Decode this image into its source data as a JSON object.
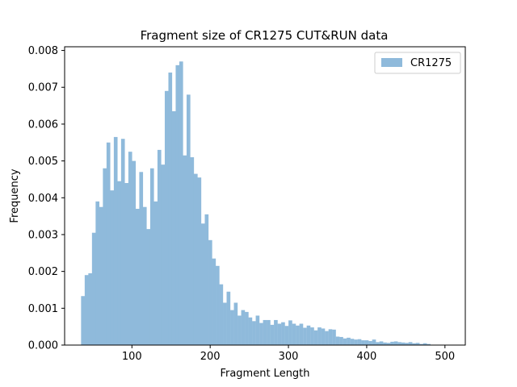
{
  "chart_data": {
    "type": "bar",
    "title": "Fragment size of CR1275 CUT&RUN data",
    "xlabel": "Fragment Length",
    "ylabel": "Frequency",
    "xlim": [
      14,
      526
    ],
    "ylim": [
      0,
      0.0081
    ],
    "xticks": [
      100,
      200,
      300,
      400,
      500
    ],
    "xtick_labels": [
      "100",
      "200",
      "300",
      "400",
      "500"
    ],
    "yticks": [
      0,
      0.001,
      0.002,
      0.003,
      0.004,
      0.005,
      0.006,
      0.007,
      0.008
    ],
    "ytick_labels": [
      "0.000",
      "0.001",
      "0.002",
      "0.003",
      "0.004",
      "0.005",
      "0.006",
      "0.007",
      "0.008"
    ],
    "bin_start": 35,
    "bin_width": 4.65,
    "series": [
      {
        "name": "CR1275",
        "color": "#8fbadb",
        "values": [
          0.00133,
          0.0019,
          0.00195,
          0.00305,
          0.0039,
          0.00375,
          0.0048,
          0.0055,
          0.0042,
          0.00565,
          0.00445,
          0.0056,
          0.0044,
          0.00525,
          0.005,
          0.0037,
          0.0047,
          0.00375,
          0.00315,
          0.0048,
          0.0039,
          0.0053,
          0.0049,
          0.0069,
          0.0074,
          0.00635,
          0.0076,
          0.0077,
          0.00515,
          0.0068,
          0.0051,
          0.00465,
          0.00455,
          0.0033,
          0.00355,
          0.00285,
          0.00235,
          0.00215,
          0.00165,
          0.00115,
          0.00145,
          0.00095,
          0.00115,
          0.0008,
          0.00095,
          0.0009,
          0.00075,
          0.00065,
          0.0008,
          0.0006,
          0.00068,
          0.00068,
          0.00055,
          0.00068,
          0.00058,
          0.00062,
          0.00052,
          0.00067,
          0.00058,
          0.00053,
          0.00058,
          0.00047,
          0.00053,
          0.00048,
          0.0004,
          0.00048,
          0.00045,
          0.00038,
          0.00043,
          0.00042,
          0.00023,
          0.00022,
          0.00018,
          0.0002,
          0.00017,
          0.00015,
          0.00016,
          0.00013,
          0.00013,
          0.00011,
          0.00015,
          8e-05,
          0.0001,
          7e-05,
          6e-05,
          9e-05,
          0.0001,
          8e-05,
          7e-05,
          6e-05,
          8e-05,
          5e-05,
          6e-05,
          3e-05,
          5e-05,
          3e-05
        ]
      }
    ],
    "legend": {
      "position": "top-right",
      "label": "CR1275"
    },
    "grid": false
  }
}
